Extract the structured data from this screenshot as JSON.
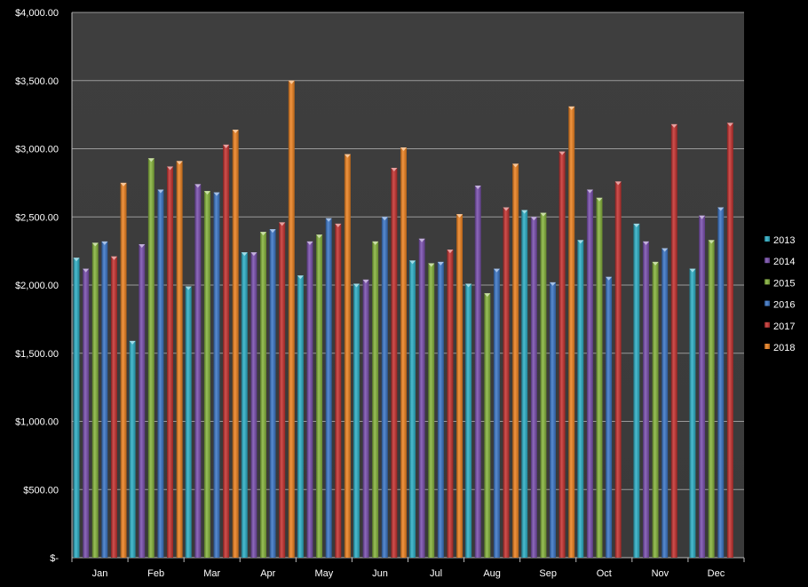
{
  "chart_data": {
    "type": "bar",
    "title": "",
    "xlabel": "",
    "ylabel": "",
    "ylim": [
      0,
      4000
    ],
    "y_ticks": [
      0,
      500,
      1000,
      1500,
      2000,
      2500,
      3000,
      3500,
      4000
    ],
    "y_tick_labels": [
      "$-",
      "$500.00",
      "$1,000.00",
      "$1,500.00",
      "$2,000.00",
      "$2,500.00",
      "$3,000.00",
      "$3,500.00",
      "$4,000.00"
    ],
    "grid": true,
    "legend_position": "right",
    "categories": [
      "Jan",
      "Feb",
      "Mar",
      "Apr",
      "May",
      "Jun",
      "Jul",
      "Aug",
      "Sep",
      "Oct",
      "Nov",
      "Dec"
    ],
    "series": [
      {
        "name": "2013",
        "color": "#2bb0c8",
        "values": [
          2200,
          1590,
          1990,
          2240,
          2070,
          2010,
          2180,
          2010,
          2550,
          2330,
          2450,
          2120
        ]
      },
      {
        "name": "2014",
        "color": "#7a4fb0",
        "values": [
          2120,
          2300,
          2740,
          2240,
          2320,
          2040,
          2340,
          2730,
          2500,
          2700,
          2320,
          2510
        ]
      },
      {
        "name": "2015",
        "color": "#86b53a",
        "values": [
          2310,
          2930,
          2690,
          2390,
          2370,
          2320,
          2160,
          1940,
          2530,
          2640,
          2170,
          2330
        ]
      },
      {
        "name": "2016",
        "color": "#3a76c9",
        "values": [
          2320,
          2700,
          2680,
          2410,
          2490,
          2500,
          2170,
          2120,
          2020,
          2060,
          2270,
          2570
        ]
      },
      {
        "name": "2017",
        "color": "#c8312f",
        "values": [
          2210,
          2870,
          3030,
          2460,
          2450,
          2860,
          2260,
          2570,
          2980,
          2760,
          3180,
          3190
        ]
      },
      {
        "name": "2018",
        "color": "#f0821e",
        "values": [
          2750,
          2910,
          3140,
          3500,
          2960,
          3010,
          2520,
          2890,
          3310,
          null,
          null,
          null
        ]
      }
    ]
  }
}
